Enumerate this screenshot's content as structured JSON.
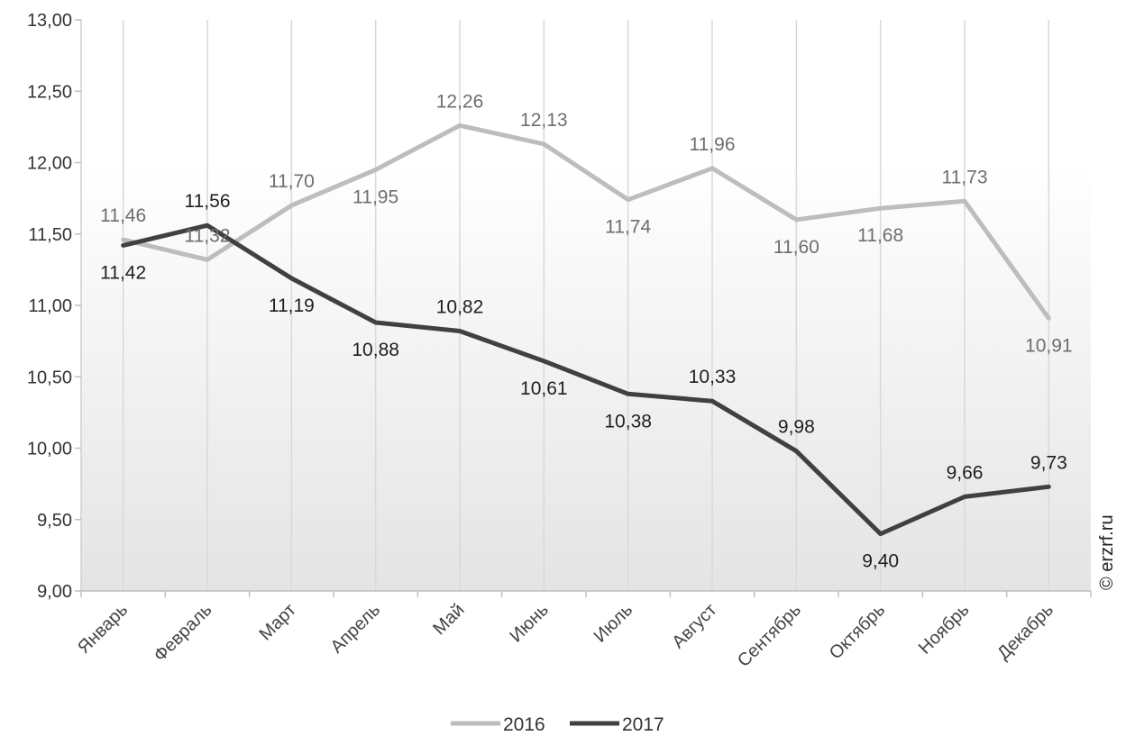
{
  "chart_data": {
    "type": "line",
    "categories": [
      "Январь",
      "Февраль",
      "Март",
      "Апрель",
      "Май",
      "Июнь",
      "Июль",
      "Август",
      "Сентябрь",
      "Октябрь",
      "Ноябрь",
      "Декабрь"
    ],
    "series": [
      {
        "name": "2016",
        "color": "#bdbdbd",
        "values": [
          11.46,
          11.32,
          11.7,
          11.95,
          12.26,
          12.13,
          11.74,
          11.96,
          11.6,
          11.68,
          11.73,
          10.91
        ],
        "labels": [
          "11,46",
          "11,32",
          "11,70",
          "11,95",
          "12,26",
          "12,13",
          "11,74",
          "11,96",
          "11,60",
          "11,68",
          "11,73",
          "10,91"
        ]
      },
      {
        "name": "2017",
        "color": "#404040",
        "values": [
          11.42,
          11.56,
          11.19,
          10.88,
          10.82,
          10.61,
          10.38,
          10.33,
          9.98,
          9.4,
          9.66,
          9.73
        ],
        "labels": [
          "11,42",
          "11,56",
          "11,19",
          "10,88",
          "10,82",
          "10,61",
          "10,38",
          "10,33",
          "9,98",
          "9,40",
          "9,66",
          "9,73"
        ]
      }
    ],
    "ylim": [
      9.0,
      13.0
    ],
    "yticks": [
      9.0,
      9.5,
      10.0,
      10.5,
      11.0,
      11.5,
      12.0,
      12.5,
      13.0
    ],
    "ytick_labels": [
      "9,00",
      "9,50",
      "10,00",
      "10,50",
      "11,00",
      "11,50",
      "12,00",
      "12,50",
      "13,00"
    ],
    "title": "",
    "xlabel": "",
    "ylabel": "",
    "grid": "vertical",
    "legend_position": "bottom"
  },
  "watermark": "© erzrf.ru"
}
